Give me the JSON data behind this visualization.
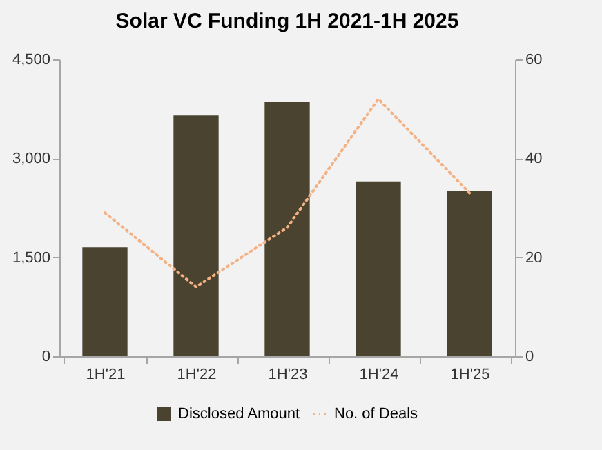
{
  "chart_data": {
    "type": "bar",
    "title": "Solar VC Funding 1H 2021-1H 2025",
    "categories": [
      "1H'21",
      "1H'22",
      "1H'23",
      "1H'24",
      "1H'25"
    ],
    "series": [
      {
        "name": "Disclosed Amount",
        "color": "#4a4330",
        "values": [
          1650,
          3650,
          3850,
          2650,
          2500
        ]
      },
      {
        "name": "No. of Deals",
        "type": "line",
        "axis": "y2",
        "color": "#f4b183",
        "line_style": "dotted",
        "values": [
          29,
          14,
          26,
          52,
          33
        ]
      }
    ],
    "ylim": [
      0,
      4500
    ],
    "yticks": [
      {
        "value": 0,
        "label": "0"
      },
      {
        "value": 1500,
        "label": "1,500"
      },
      {
        "value": 3000,
        "label": "3,000"
      },
      {
        "value": 4500,
        "label": "4,500"
      }
    ],
    "y2lim": [
      0,
      60
    ],
    "y2ticks": [
      0,
      20,
      40,
      60
    ],
    "grid": false,
    "legend": "bottom",
    "marker": "none"
  }
}
